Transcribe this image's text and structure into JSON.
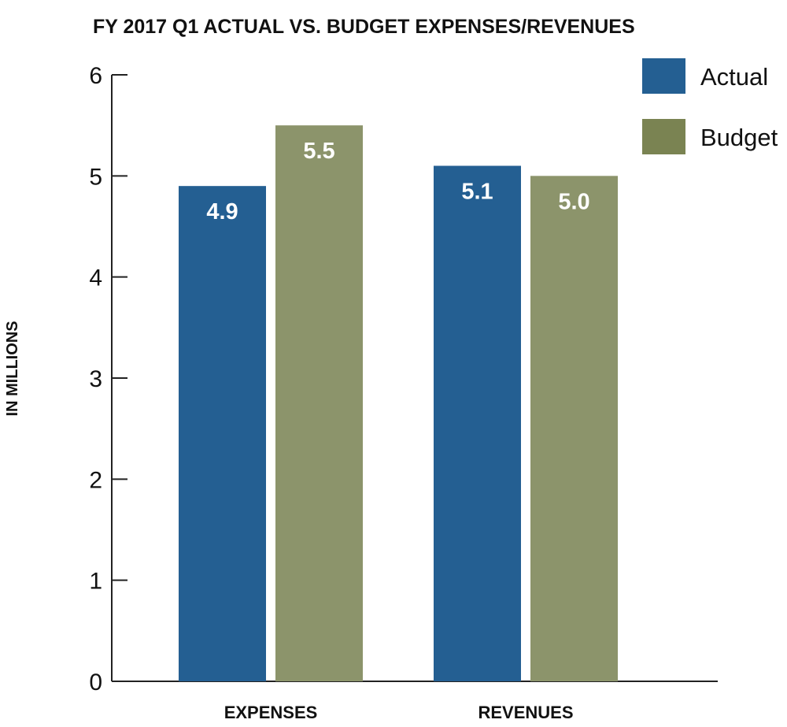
{
  "chart_data": {
    "type": "bar",
    "title": "FY 2017 Q1 ACTUAL VS. BUDGET EXPENSES/REVENUES",
    "ylabel": "IN MILLIONS",
    "xlabel": "",
    "categories": [
      "EXPENSES",
      "REVENUES"
    ],
    "series": [
      {
        "name": "Actual",
        "values": [
          4.9,
          5.1
        ],
        "labels": [
          "4.9",
          "5.1"
        ],
        "color": "#245f92"
      },
      {
        "name": "Budget",
        "values": [
          5.5,
          5.0
        ],
        "labels": [
          "5.5",
          "5.0"
        ],
        "color": "#8c946b"
      }
    ],
    "ylim": [
      0,
      6
    ],
    "yticks": [
      "0",
      "1",
      "2",
      "3",
      "4",
      "5",
      "6"
    ],
    "grid": false,
    "legend": {
      "position": "top-right",
      "entries": [
        "Actual",
        "Budget"
      ],
      "swatch_colors": [
        "#245f92",
        "#7a8352"
      ]
    }
  }
}
